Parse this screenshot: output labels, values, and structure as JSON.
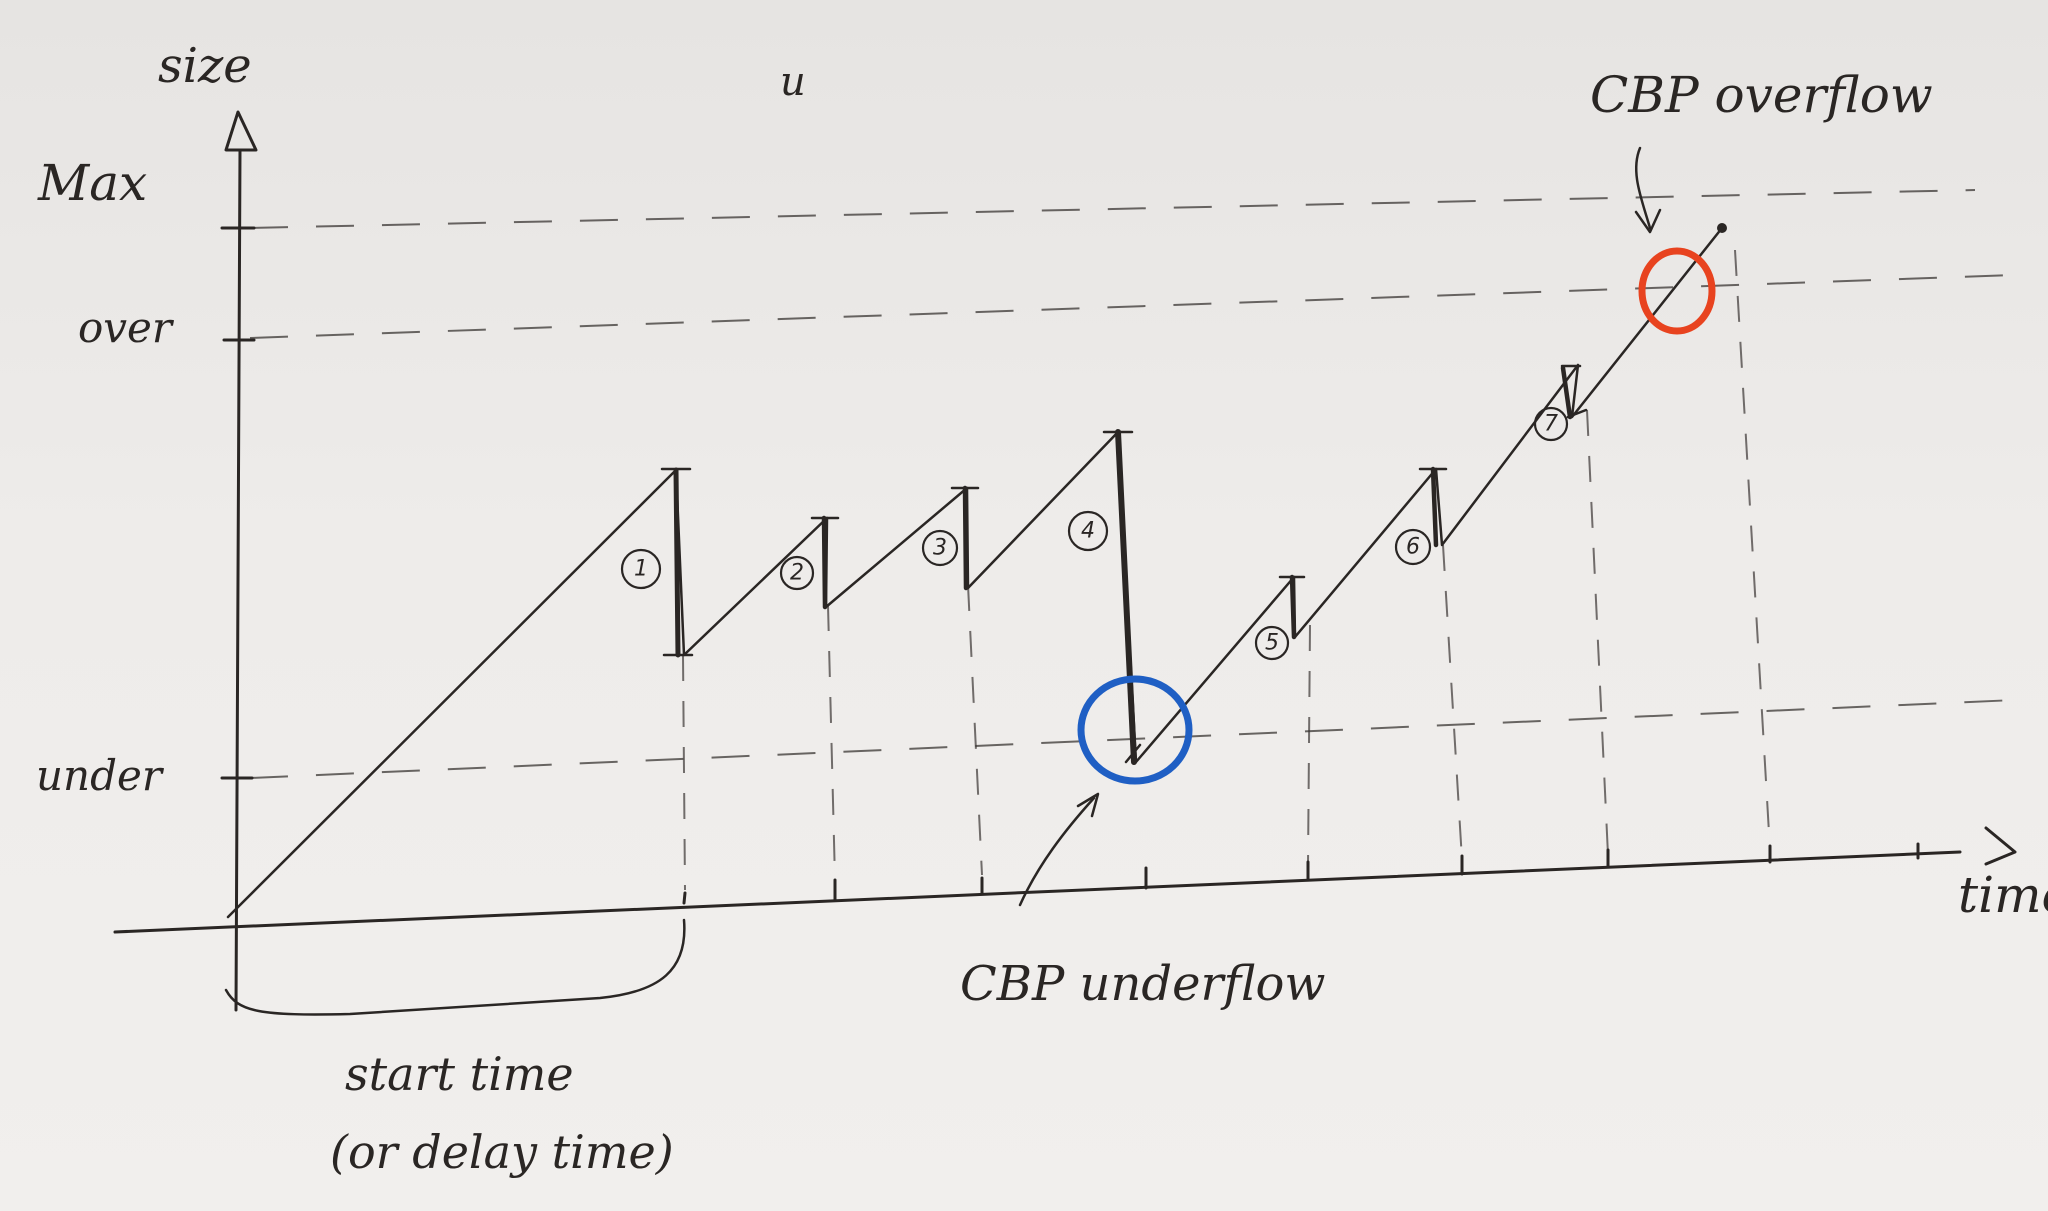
{
  "axes": {
    "y_label": "size",
    "x_label": "time",
    "stray_mark": "u"
  },
  "levels": {
    "max": "Max",
    "over": "over",
    "under": "under"
  },
  "steps": [
    "1",
    "2",
    "3",
    "4",
    "5",
    "6",
    "7"
  ],
  "annotations": {
    "start_line1": "start time",
    "start_line2": "(or delay time)",
    "underflow": "CBP underflow",
    "overflow": "CBP overflow"
  },
  "colors": {
    "ink": "#2a2624",
    "underflow_circle": "#1f5fc4",
    "overflow_circle": "#e8431f",
    "paper": "#ebe9e7"
  }
}
